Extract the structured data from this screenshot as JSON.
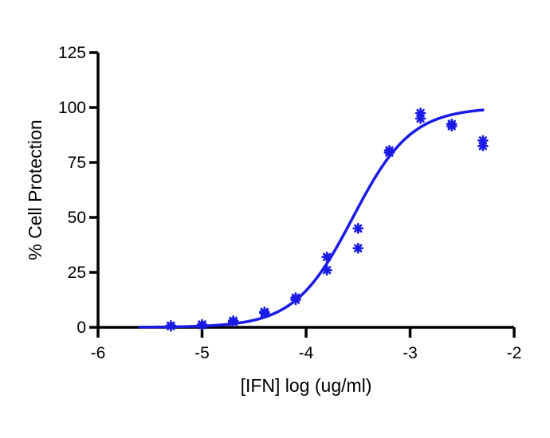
{
  "chart_data": {
    "type": "scatter",
    "title": "",
    "xlabel": "[IFN] log (ug/ml)",
    "ylabel": "% Cell Protection",
    "xlim": [
      -6,
      -2
    ],
    "ylim": [
      0,
      125
    ],
    "x_ticks": [
      -6,
      -5,
      -4,
      -3,
      -2
    ],
    "x_tick_labels": [
      "-6",
      "-5",
      "-4",
      "-3",
      "-2"
    ],
    "y_ticks": [
      0,
      25,
      50,
      75,
      100,
      125
    ],
    "y_tick_labels": [
      "0",
      "25",
      "50",
      "75",
      "100",
      "125"
    ],
    "grid": false,
    "legend": "none",
    "series_color": "#1a1ae6",
    "points": [
      {
        "x": -5.3,
        "y": 0.5
      },
      {
        "x": -5.3,
        "y": 0.8
      },
      {
        "x": -5.0,
        "y": 1.0
      },
      {
        "x": -5.0,
        "y": 1.3
      },
      {
        "x": -4.7,
        "y": 2.5
      },
      {
        "x": -4.7,
        "y": 3.0
      },
      {
        "x": -4.4,
        "y": 6.5
      },
      {
        "x": -4.4,
        "y": 7.0
      },
      {
        "x": -4.1,
        "y": 12.5
      },
      {
        "x": -4.1,
        "y": 13.5
      },
      {
        "x": -3.8,
        "y": 26.0
      },
      {
        "x": -3.8,
        "y": 32.0
      },
      {
        "x": -3.5,
        "y": 36.0
      },
      {
        "x": -3.5,
        "y": 45.0
      },
      {
        "x": -3.2,
        "y": 79.5
      },
      {
        "x": -3.2,
        "y": 80.5
      },
      {
        "x": -2.9,
        "y": 95.0
      },
      {
        "x": -2.9,
        "y": 97.5
      },
      {
        "x": -2.6,
        "y": 91.5
      },
      {
        "x": -2.6,
        "y": 92.5
      },
      {
        "x": -2.3,
        "y": 82.5
      },
      {
        "x": -2.3,
        "y": 85.0
      }
    ],
    "fit_curve": {
      "type": "sigmoidal dose-response",
      "bottom": 0,
      "top": 100,
      "log_ec50": -3.55,
      "hill_slope": 1.55,
      "x_range": [
        -5.6,
        -2.3
      ]
    }
  }
}
